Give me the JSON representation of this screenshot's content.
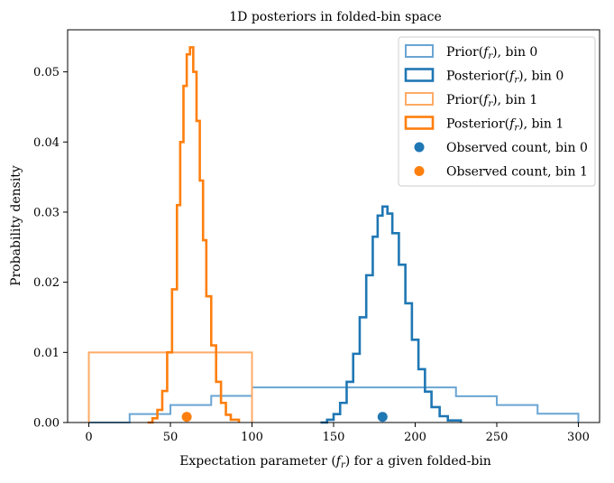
{
  "chart_data": {
    "type": "histogram",
    "title": "1D posteriors in folded-bin space",
    "xlabel": "Expectation parameter (f_r) for a given folded-bin",
    "ylabel": "Probability density",
    "xlim": [
      -13,
      313
    ],
    "ylim": [
      0.0,
      0.056
    ],
    "xticks": [
      0,
      50,
      100,
      150,
      200,
      250,
      300
    ],
    "yticks": [
      0.0,
      0.01,
      0.02,
      0.03,
      0.04,
      0.05
    ],
    "xtick_labels": [
      "0",
      "50",
      "100",
      "150",
      "200",
      "250",
      "300"
    ],
    "ytick_labels": [
      "0.00",
      "0.01",
      "0.02",
      "0.03",
      "0.04",
      "0.05"
    ],
    "grid": false,
    "legend_position": "top-right",
    "colors": {
      "bin0": "#1f77b4",
      "bin1": "#ff7f0e",
      "bin0_prior": "#6aa5d3",
      "bin1_prior": "#ffab66"
    },
    "series": [
      {
        "name": "Prior(f_r), bin 0",
        "kind": "step",
        "style": "thin",
        "color": "#6aa5d3",
        "points": [
          [
            0,
            0.0
          ],
          [
            25,
            0.0012
          ],
          [
            50,
            0.0025
          ],
          [
            75,
            0.0038
          ],
          [
            100,
            0.005
          ],
          [
            200,
            0.005
          ],
          [
            225,
            0.00375
          ],
          [
            250,
            0.0025
          ],
          [
            275,
            0.00125
          ],
          [
            300,
            0.0
          ]
        ]
      },
      {
        "name": "Posterior(f_r), bin 0",
        "kind": "step",
        "style": "thick",
        "color": "#1f77b4",
        "points": [
          [
            142,
            0.0
          ],
          [
            146,
            0.0004
          ],
          [
            150,
            0.0012
          ],
          [
            154,
            0.0028
          ],
          [
            158,
            0.0058
          ],
          [
            162,
            0.0098
          ],
          [
            166,
            0.015
          ],
          [
            170,
            0.021
          ],
          [
            174,
            0.0265
          ],
          [
            177,
            0.0295
          ],
          [
            180,
            0.0308
          ],
          [
            183,
            0.0298
          ],
          [
            186,
            0.027
          ],
          [
            190,
            0.0225
          ],
          [
            194,
            0.017
          ],
          [
            198,
            0.0118
          ],
          [
            202,
            0.0076
          ],
          [
            206,
            0.0044
          ],
          [
            210,
            0.0022
          ],
          [
            215,
            0.0009
          ],
          [
            220,
            0.0003
          ],
          [
            228,
            0.0
          ]
        ]
      },
      {
        "name": "Prior(f_r), bin 1",
        "kind": "step",
        "style": "thin",
        "color": "#ffab66",
        "points": [
          [
            0,
            0.0
          ],
          [
            0,
            0.01
          ],
          [
            100,
            0.01
          ],
          [
            100,
            0.0
          ]
        ]
      },
      {
        "name": "Posterior(f_r), bin 1",
        "kind": "step",
        "style": "thick",
        "color": "#ff7f0e",
        "points": [
          [
            36,
            0.0
          ],
          [
            39,
            0.0006
          ],
          [
            42,
            0.0018
          ],
          [
            45,
            0.0045
          ],
          [
            48,
            0.01
          ],
          [
            51,
            0.019
          ],
          [
            54,
            0.031
          ],
          [
            56,
            0.04
          ],
          [
            58,
            0.048
          ],
          [
            60,
            0.0525
          ],
          [
            62,
            0.0535
          ],
          [
            64,
            0.05
          ],
          [
            66,
            0.043
          ],
          [
            68,
            0.0345
          ],
          [
            70,
            0.026
          ],
          [
            72,
            0.018
          ],
          [
            75,
            0.011
          ],
          [
            78,
            0.0058
          ],
          [
            81,
            0.0028
          ],
          [
            84,
            0.0011
          ],
          [
            87,
            0.0004
          ],
          [
            92,
            0.0
          ]
        ]
      },
      {
        "name": "Observed count, bin 0",
        "kind": "scatter",
        "color": "#1f77b4",
        "points": [
          [
            180,
            0.0008
          ]
        ]
      },
      {
        "name": "Observed count, bin 1",
        "kind": "scatter",
        "color": "#ff7f0e",
        "points": [
          [
            60,
            0.0008
          ]
        ]
      }
    ],
    "legend": [
      {
        "prefix": "Prior(",
        "math": "f_r",
        "suffix": "), bin 0",
        "marker": "patch-thin",
        "color": "#6aa5d3"
      },
      {
        "prefix": "Posterior(",
        "math": "f_r",
        "suffix": "), bin 0",
        "marker": "patch-thick",
        "color": "#1f77b4"
      },
      {
        "prefix": "Prior(",
        "math": "f_r",
        "suffix": "), bin 1",
        "marker": "patch-thin",
        "color": "#ffab66"
      },
      {
        "prefix": "Posterior(",
        "math": "f_r",
        "suffix": "), bin 1",
        "marker": "patch-thick",
        "color": "#ff7f0e"
      },
      {
        "prefix": "Observed count, bin 0",
        "math": "",
        "suffix": "",
        "marker": "dot",
        "color": "#1f77b4"
      },
      {
        "prefix": "Observed count, bin 1",
        "math": "",
        "suffix": "",
        "marker": "dot",
        "color": "#ff7f0e"
      }
    ]
  }
}
